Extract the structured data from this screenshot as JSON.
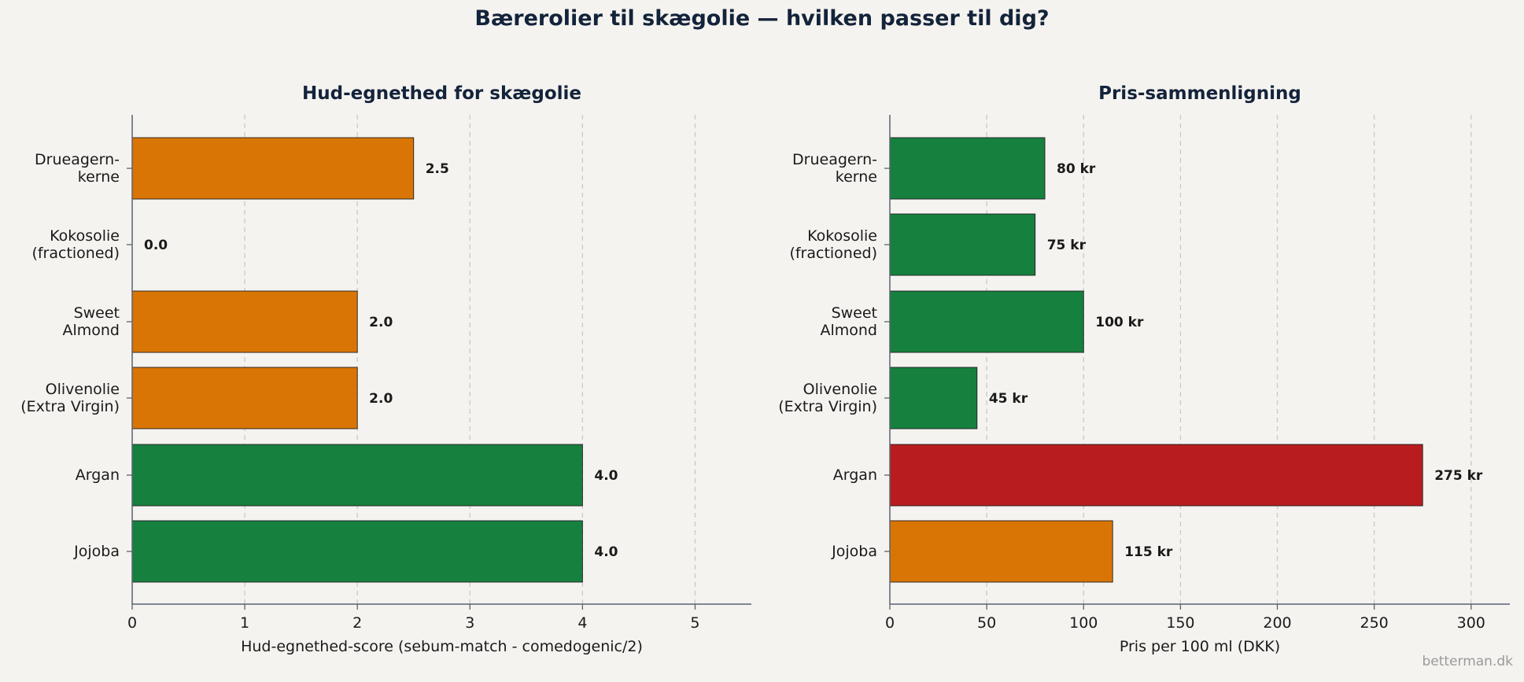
{
  "figure": {
    "title": "Bærerolier til skægolie — hvilken passer til dig?",
    "watermark": "betterman.dk"
  },
  "colors": {
    "background": "#f5f3f0",
    "green": "#16803f",
    "orange": "#d97505",
    "red": "#b81c1f",
    "title": "#13233a"
  },
  "chart_data": [
    {
      "type": "bar",
      "orientation": "horizontal",
      "title": "Hud-egnethed for skægolie",
      "xlabel": "Hud-egnethed-score (sebum-match - comedogenic/2)",
      "ylabel": "",
      "categories": [
        "Drueagern-\nkerne",
        "Kokosolie\n(fractioned)",
        "Sweet\nAlmond",
        "Olivenolie\n(Extra Virgin)",
        "Argan",
        "Jojoba"
      ],
      "values": [
        2.5,
        0.0,
        2.0,
        2.0,
        4.0,
        4.0
      ],
      "value_labels": [
        "2.5",
        "0.0",
        "2.0",
        "2.0",
        "4.0",
        "4.0"
      ],
      "bar_colors": [
        "#d97505",
        "#16803f",
        "#d97505",
        "#d97505",
        "#16803f",
        "#16803f"
      ],
      "xlim": [
        0,
        5.5
      ],
      "xticks": [
        0,
        1,
        2,
        3,
        4,
        5
      ],
      "grid": "vertical-dashed"
    },
    {
      "type": "bar",
      "orientation": "horizontal",
      "title": "Pris-sammenligning",
      "xlabel": "Pris per 100 ml (DKK)",
      "ylabel": "",
      "categories": [
        "Drueagern-\nkerne",
        "Kokosolie\n(fractioned)",
        "Sweet\nAlmond",
        "Olivenolie\n(Extra Virgin)",
        "Argan",
        "Jojoba"
      ],
      "values": [
        80,
        75,
        100,
        45,
        275,
        115
      ],
      "value_labels": [
        "80 kr",
        "75 kr",
        "100 kr",
        "45 kr",
        "275 kr",
        "115 kr"
      ],
      "bar_colors": [
        "#16803f",
        "#16803f",
        "#16803f",
        "#16803f",
        "#b81c1f",
        "#d97505"
      ],
      "xlim": [
        0,
        320
      ],
      "xticks": [
        0,
        50,
        100,
        150,
        200,
        250,
        300
      ],
      "grid": "vertical-dashed"
    }
  ]
}
